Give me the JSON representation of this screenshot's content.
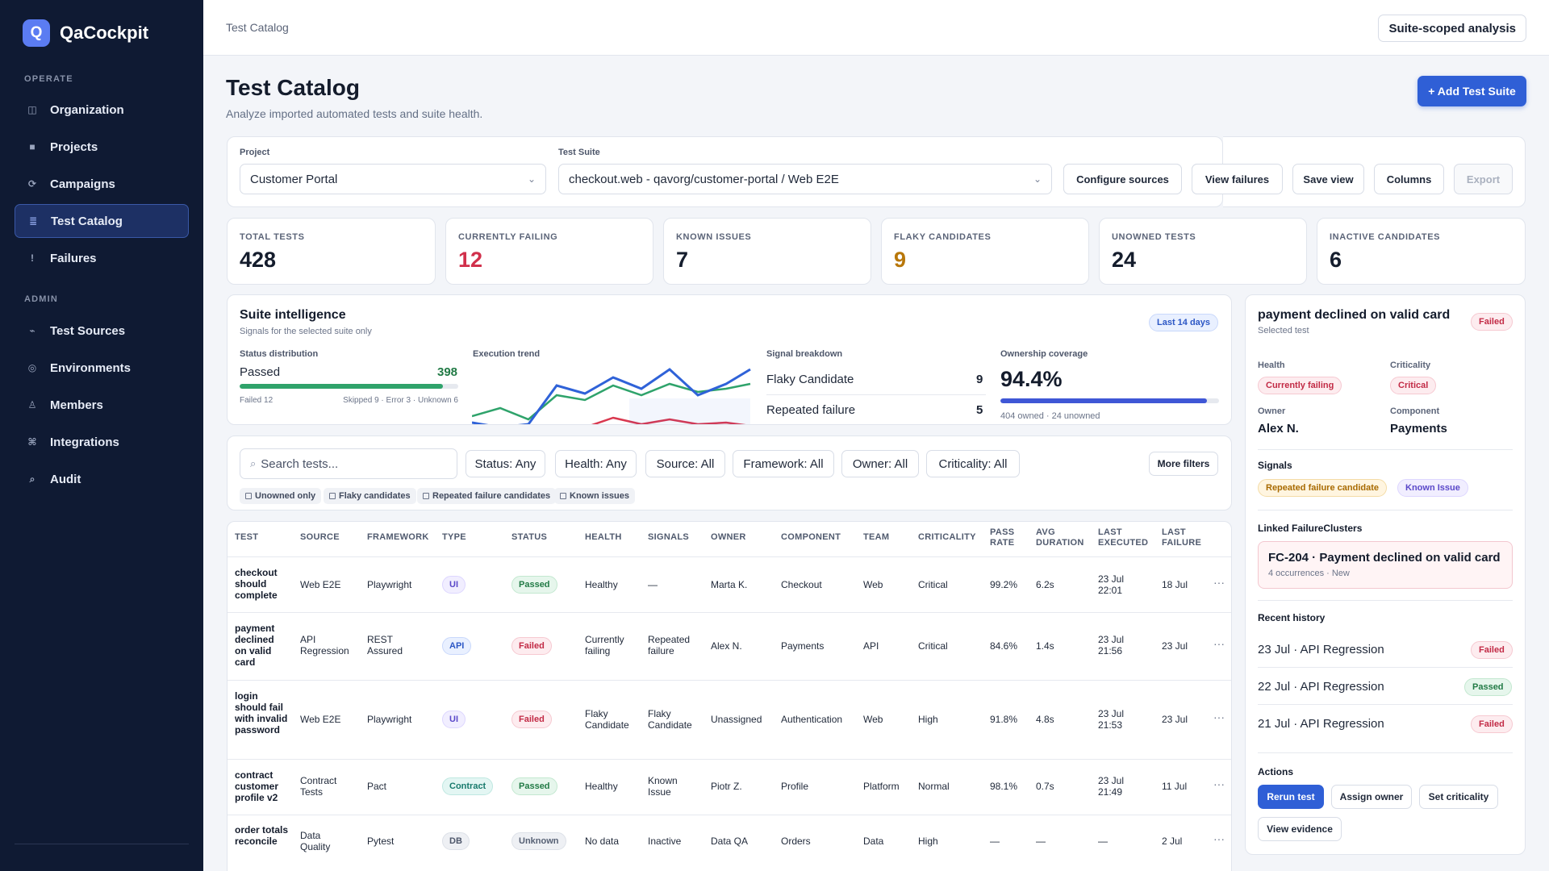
{
  "app": {
    "logo_letter": "Q",
    "name": "QaCockpit"
  },
  "sidebar": {
    "operate_label": "OPERATE",
    "operate": [
      {
        "label": "Organization",
        "icon": "grid-icon"
      },
      {
        "label": "Projects",
        "icon": "folder-icon"
      },
      {
        "label": "Campaigns",
        "icon": "cycle-icon"
      },
      {
        "label": "Test Catalog",
        "icon": "list-icon",
        "active": true
      },
      {
        "label": "Failures",
        "icon": "alert-icon"
      }
    ],
    "admin_label": "ADMIN",
    "admin": [
      {
        "label": "Test Sources",
        "icon": "plug-icon"
      },
      {
        "label": "Environments",
        "icon": "target-icon"
      },
      {
        "label": "Members",
        "icon": "user-icon"
      },
      {
        "label": "Integrations",
        "icon": "command-icon"
      },
      {
        "label": "Audit",
        "icon": "search-icon"
      }
    ]
  },
  "topbar": {
    "breadcrumb": "Test Catalog",
    "scope_button": "Suite-scoped analysis"
  },
  "header": {
    "title": "Test Catalog",
    "subtitle": "Analyze imported automated tests and suite health.",
    "add_button": "+ Add Test Suite"
  },
  "filters": {
    "project_label": "Project",
    "project_value": "Customer Portal",
    "suite_label": "Test Suite",
    "suite_value": "checkout.web - qavorg/customer-portal / Web E2E",
    "buttons": [
      "Configure sources",
      "View failures",
      "Save view",
      "Columns",
      "Export"
    ]
  },
  "stats": [
    {
      "label": "TOTAL TESTS",
      "value": "428",
      "color": "#151d2d"
    },
    {
      "label": "CURRENTLY FAILING",
      "value": "12",
      "color": "#d1304b"
    },
    {
      "label": "KNOWN ISSUES",
      "value": "7",
      "color": "#151d2d"
    },
    {
      "label": "FLAKY CANDIDATES",
      "value": "9",
      "color": "#b8770a"
    },
    {
      "label": "UNOWNED TESTS",
      "value": "24",
      "color": "#151d2d"
    },
    {
      "label": "INACTIVE CANDIDATES",
      "value": "6",
      "color": "#151d2d"
    }
  ],
  "intelligence": {
    "title": "Suite intelligence",
    "subtitle": "Signals for the selected suite only",
    "range_pill": "Last 14 days",
    "status": {
      "label": "Status distribution",
      "passed_label": "Passed",
      "passed_value": "398",
      "passed_fraction": 0.93,
      "failed_text": "Failed 12",
      "other_text": "Skipped 9 · Error 3 · Unknown 6"
    },
    "trend": {
      "label": "Execution trend"
    },
    "signals": {
      "label": "Signal breakdown",
      "items": [
        {
          "name": "Flaky Candidate",
          "count": "9"
        },
        {
          "name": "Repeated failure",
          "count": "5"
        }
      ]
    },
    "ownership": {
      "label": "Ownership coverage",
      "value": "94.4%",
      "fraction": 0.944,
      "caption": "404 owned · 24 unowned"
    }
  },
  "search": {
    "placeholder": "Search tests...",
    "filters": [
      "Status: Any",
      "Health: Any",
      "Source: All",
      "Framework: All",
      "Owner: All",
      "Criticality: All"
    ],
    "more": "More filters",
    "chips": [
      "Unowned only",
      "Flaky candidates",
      "Repeated failure candidates",
      "Known issues"
    ]
  },
  "table": {
    "headers": [
      "TEST",
      "SOURCE",
      "FRAMEWORK",
      "TYPE",
      "STATUS",
      "HEALTH",
      "SIGNALS",
      "OWNER",
      "COMPONENT",
      "TEAM",
      "CRITICALITY",
      "PASS RATE",
      "AVG DURATION",
      "LAST EXECUTED",
      "LAST FAILURE"
    ],
    "rows": [
      {
        "test": "checkout should complete",
        "source": "Web E2E",
        "framework": "Playwright",
        "type": "UI",
        "status": "Passed",
        "health": "Healthy",
        "signals": "—",
        "owner": "Marta K.",
        "component": "Checkout",
        "team": "Web",
        "criticality": "Critical",
        "pass_rate": "99.2%",
        "avg_duration": "6.2s",
        "last_executed": "23 Jul 22:01",
        "last_failure": "18 Jul"
      },
      {
        "test": "payment declined on valid card",
        "source": "API Regression",
        "framework": "REST Assured",
        "type": "API",
        "status": "Failed",
        "health": "Currently failing",
        "signals": "Repeated failure",
        "owner": "Alex N.",
        "component": "Payments",
        "team": "API",
        "criticality": "Critical",
        "pass_rate": "84.6%",
        "avg_duration": "1.4s",
        "last_executed": "23 Jul 21:56",
        "last_failure": "23 Jul"
      },
      {
        "test": "login should fail with invalid password",
        "source": "Web E2E",
        "framework": "Playwright",
        "type": "UI",
        "status": "Failed",
        "health": "Flaky Candidate",
        "signals": "Flaky Candidate",
        "owner": "Unassigned",
        "component": "Authentication",
        "team": "Web",
        "criticality": "High",
        "pass_rate": "91.8%",
        "avg_duration": "4.8s",
        "last_executed": "23 Jul 21:53",
        "last_failure": "23 Jul"
      },
      {
        "test": "contract customer profile v2",
        "source": "Contract Tests",
        "framework": "Pact",
        "type": "Contract",
        "status": "Passed",
        "health": "Healthy",
        "signals": "Known Issue",
        "owner": "Piotr Z.",
        "component": "Profile",
        "team": "Platform",
        "criticality": "Normal",
        "pass_rate": "98.1%",
        "avg_duration": "0.7s",
        "last_executed": "23 Jul 21:49",
        "last_failure": "11 Jul"
      },
      {
        "test": "order totals reconcile",
        "source": "Data Quality",
        "framework": "Pytest",
        "type": "DB",
        "status": "Unknown",
        "health": "No data",
        "signals": "Inactive",
        "owner": "Data QA",
        "component": "Orders",
        "team": "Data",
        "criticality": "High",
        "pass_rate": "—",
        "avg_duration": "—",
        "last_executed": "—",
        "last_failure": "2 Jul"
      }
    ]
  },
  "detail": {
    "title": "payment declined on valid card",
    "subtitle": "Selected test",
    "status_badge": "Failed",
    "health_label": "Health",
    "health_value": "Currently failing",
    "criticality_label": "Criticality",
    "criticality_value": "Critical",
    "owner_label": "Owner",
    "owner_value": "Alex N.",
    "component_label": "Component",
    "component_value": "Payments",
    "signals_label": "Signals",
    "signals": [
      "Repeated failure candidate",
      "Known Issue"
    ],
    "clusters_label": "Linked FailureClusters",
    "cluster_title": "FC-204 · Payment declined on valid card",
    "cluster_meta": "4 occurrences · New",
    "history_label": "Recent history",
    "history": [
      {
        "text": "23 Jul · API Regression",
        "status": "Failed"
      },
      {
        "text": "22 Jul · API Regression",
        "status": "Passed"
      },
      {
        "text": "21 Jul · API Regression",
        "status": "Failed"
      }
    ],
    "actions_label": "Actions",
    "actions": [
      "Rerun test",
      "Assign owner",
      "Set criticality",
      "View evidence"
    ]
  }
}
